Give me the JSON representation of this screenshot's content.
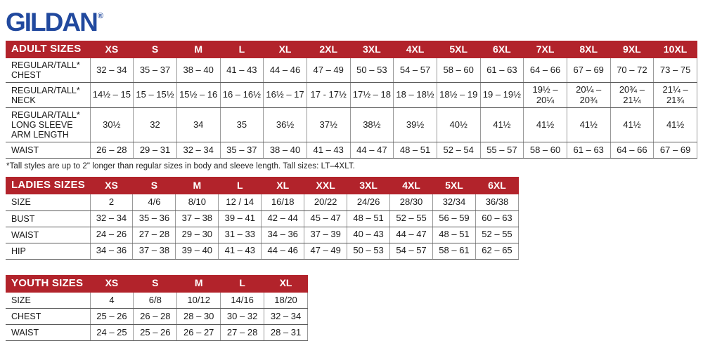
{
  "brand": {
    "name": "GILDAN",
    "registered": "®",
    "color": "#21499E"
  },
  "theme": {
    "header_bg": "#B2232B",
    "header_text": "#ffffff",
    "row_line": "#5a5a5a",
    "col_line": "#9a9a9a",
    "logo_blue": "#21499E"
  },
  "tables": [
    {
      "id": "adult-sizes",
      "title": "ADULT SIZES",
      "columns": [
        "XS",
        "S",
        "M",
        "L",
        "XL",
        "2XL",
        "3XL",
        "4XL",
        "5XL",
        "6XL",
        "7XL",
        "8XL",
        "9XL",
        "10XL"
      ],
      "rows": [
        {
          "label": "REGULAR/TALL* CHEST",
          "values": [
            "32 – 34",
            "35 – 37",
            "38 – 40",
            "41 – 43",
            "44 – 46",
            "47 – 49",
            "50 – 53",
            "54 – 57",
            "58 – 60",
            "61 – 63",
            "64 – 66",
            "67 – 69",
            "70 – 72",
            "73 – 75"
          ]
        },
        {
          "label": "REGULAR/TALL* NECK",
          "values": [
            "14½ – 15",
            "15 – 15½",
            "15½ – 16",
            "16 – 16½",
            "16½ – 17",
            "17 - 17½",
            "17½ – 18",
            "18 – 18½",
            "18½ – 19",
            "19 – 19½",
            "19½ – 20¼",
            "20¼ – 20¾",
            "20¾ – 21¼",
            "21¼ – 21¾"
          ]
        },
        {
          "label": "REGULAR/TALL* LONG SLEEVE ARM LENGTH",
          "values": [
            "30½",
            "32",
            "34",
            "35",
            "36½",
            "37½",
            "38½",
            "39½",
            "40½",
            "41½",
            "41½",
            "41½",
            "41½",
            "41½"
          ]
        },
        {
          "label": "WAIST",
          "values": [
            "26 – 28",
            "29 – 31",
            "32 – 34",
            "35 – 37",
            "38 – 40",
            "41 – 43",
            "44 – 47",
            "48 – 51",
            "52 – 54",
            "55 – 57",
            "58 – 60",
            "61 – 63",
            "64 – 66",
            "67 – 69"
          ]
        }
      ],
      "footnote": "*Tall styles are up to 2\" longer than regular sizes in body and sleeve length. Tall sizes: LT–4XLT."
    },
    {
      "id": "ladies-sizes",
      "title": "LADIES SIZES",
      "columns": [
        "XS",
        "S",
        "M",
        "L",
        "XL",
        "XXL",
        "3XL",
        "4XL",
        "5XL",
        "6XL"
      ],
      "rows": [
        {
          "label": "SIZE",
          "values": [
            "2",
            "4/6",
            "8/10",
            "12 / 14",
            "16/18",
            "20/22",
            "24/26",
            "28/30",
            "32/34",
            "36/38"
          ]
        },
        {
          "label": "BUST",
          "values": [
            "32 – 34",
            "35 – 36",
            "37 – 38",
            "39 – 41",
            "42 – 44",
            "45 – 47",
            "48 – 51",
            "52 – 55",
            "56 – 59",
            "60 – 63"
          ]
        },
        {
          "label": "WAIST",
          "values": [
            "24 – 26",
            "27 – 28",
            "29 – 30",
            "31 – 33",
            "34 – 36",
            "37 – 39",
            "40 – 43",
            "44 – 47",
            "48 – 51",
            "52 – 55"
          ]
        },
        {
          "label": "HIP",
          "values": [
            "34 – 36",
            "37 – 38",
            "39 – 40",
            "41 – 43",
            "44 – 46",
            "47 – 49",
            "50 – 53",
            "54 – 57",
            "58 – 61",
            "62 – 65"
          ]
        }
      ],
      "footnote": ""
    },
    {
      "id": "youth-sizes",
      "title": "YOUTH SIZES",
      "columns": [
        "XS",
        "S",
        "M",
        "L",
        "XL"
      ],
      "rows": [
        {
          "label": "SIZE",
          "values": [
            "4",
            "6/8",
            "10/12",
            "14/16",
            "18/20"
          ]
        },
        {
          "label": "CHEST",
          "values": [
            "25 – 26",
            "26 – 28",
            "28 – 30",
            "30 – 32",
            "32 – 34"
          ]
        },
        {
          "label": "WAIST",
          "values": [
            "24 – 25",
            "25 – 26",
            "26 – 27",
            "27 – 28",
            "28 – 31"
          ]
        }
      ],
      "footnote": ""
    }
  ]
}
